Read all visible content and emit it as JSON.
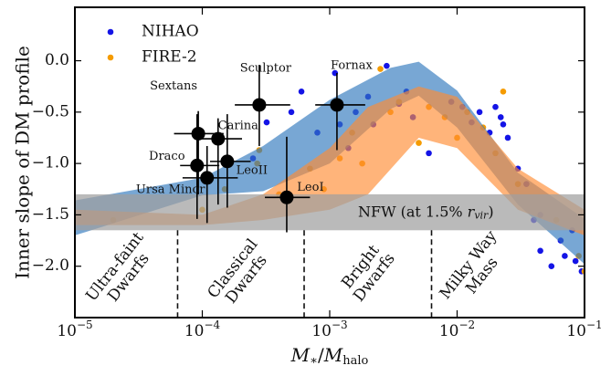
{
  "chart_data": {
    "type": "scatter",
    "x_label": {
      "parts": [
        "M",
        "∗",
        "/",
        "M",
        "halo"
      ]
    },
    "y_label": "Inner slope of DM profile",
    "xscale": "log",
    "xlim": [
      1e-05,
      0.1
    ],
    "ylim": [
      -2.5,
      0.52
    ],
    "xticks": [
      {
        "value": 1e-05,
        "label": "10",
        "sup": "−5"
      },
      {
        "value": 0.0001,
        "label": "10",
        "sup": "−4"
      },
      {
        "value": 0.001,
        "label": "10",
        "sup": "−3"
      },
      {
        "value": 0.01,
        "label": "10",
        "sup": "−2"
      },
      {
        "value": 0.1,
        "label": "10",
        "sup": "−1"
      }
    ],
    "yticks": [
      {
        "value": 0,
        "label": "0.0"
      },
      {
        "value": -0.5,
        "label": "−0.5"
      },
      {
        "value": -1,
        "label": "−1.0"
      },
      {
        "value": -1.5,
        "label": "−1.5"
      },
      {
        "value": -2,
        "label": "−2.0"
      }
    ],
    "legend": "upper left",
    "series": [
      {
        "name": "NIHAO",
        "color": "#1414e6",
        "x": [
          0.00025,
          0.00032,
          0.0005,
          0.0006,
          0.0008,
          0.0011,
          0.0012,
          0.0014,
          0.0016,
          0.002,
          0.0022,
          0.0028,
          0.0035,
          0.004,
          0.0045,
          0.006,
          0.009,
          0.011,
          0.013,
          0.015,
          0.018,
          0.02,
          0.022,
          0.023,
          0.025,
          0.03,
          0.035,
          0.04,
          0.045,
          0.045,
          0.055,
          0.065,
          0.07,
          0.08,
          0.085,
          0.095
        ],
        "y": [
          -0.95,
          -0.6,
          -0.5,
          -0.3,
          -0.7,
          -0.12,
          -0.62,
          -0.85,
          -0.5,
          -0.35,
          -0.62,
          -0.05,
          -0.42,
          -0.3,
          -0.55,
          -0.9,
          -0.4,
          -0.45,
          -0.6,
          -0.5,
          -0.7,
          -0.45,
          -0.55,
          -0.62,
          -0.75,
          -1.05,
          -1.2,
          -1.55,
          -1.85,
          -1.5,
          -2.0,
          -1.75,
          -1.9,
          -1.65,
          -1.95,
          -2.05
        ]
      },
      {
        "name": "FIRE-2",
        "color": "#f59b00",
        "x": [
          2e-05,
          0.0001,
          0.00015,
          0.00027,
          0.00028,
          0.0004,
          0.0007,
          0.0009,
          0.0012,
          0.0015,
          0.0018,
          0.0025,
          0.003,
          0.0035,
          0.005,
          0.006,
          0.008,
          0.01,
          0.012,
          0.016,
          0.02,
          0.023,
          0.03,
          0.06,
          0.09,
          0.1
        ],
        "y": [
          -1.55,
          -1.45,
          -1.25,
          -1.0,
          -0.87,
          -1.3,
          -1.05,
          -1.25,
          -0.95,
          -0.7,
          -1.0,
          -0.08,
          -0.5,
          -0.4,
          -0.8,
          -0.45,
          -0.55,
          -0.75,
          -0.5,
          -0.65,
          -0.9,
          -0.3,
          -1.2,
          -1.55,
          -1.9,
          -2.05
        ]
      }
    ],
    "bands": [
      {
        "color": "#2f78bd",
        "x": [
          1e-05,
          0.0001,
          0.0003,
          0.001,
          0.003,
          0.005,
          0.01,
          0.03,
          0.1
        ],
        "upper": [
          -1.36,
          -1.14,
          -0.83,
          -0.38,
          -0.07,
          -0.01,
          -0.29,
          -1.09,
          -1.54
        ],
        "lower": [
          -1.7,
          -1.31,
          -1.27,
          -1.0,
          -0.47,
          -0.34,
          -0.65,
          -1.4,
          -1.98
        ]
      },
      {
        "color": "#ff8c32",
        "x": [
          1e-05,
          0.0001,
          0.0003,
          0.001,
          0.002,
          0.005,
          0.01,
          0.03,
          0.1
        ],
        "upper": [
          -1.45,
          -1.5,
          -1.3,
          -0.85,
          -0.45,
          -0.25,
          -0.35,
          -1.05,
          -1.45
        ],
        "lower": [
          -1.6,
          -1.6,
          -1.55,
          -1.45,
          -1.3,
          -0.75,
          -0.85,
          -1.45,
          -1.7
        ]
      }
    ],
    "nfw_band": {
      "upper": -1.3,
      "lower": -1.65,
      "label": "NFW (at 1.5% ",
      "label_var": "r",
      "label_sub": "vir",
      "label_end": ")"
    },
    "dividers": [
      6.4e-05,
      0.00063,
      0.0063
    ],
    "regions": [
      {
        "lines": [
          "Ultra-faint",
          "Dwarfs"
        ]
      },
      {
        "lines": [
          "Classical",
          "Dwarfs"
        ]
      },
      {
        "lines": [
          "Bright",
          "Dwarfs"
        ]
      },
      {
        "lines": [
          "Milky Way",
          "Mass"
        ]
      }
    ],
    "dwarfs": [
      {
        "name": "Sextans",
        "x": 9.3e-05,
        "y": -0.71,
        "x_lo": 6e-05,
        "x_hi": 0.000147,
        "y_lo": -1.3,
        "y_hi": -0.49
      },
      {
        "name": "Carina",
        "x": 0.000133,
        "y": -0.76,
        "x_lo": 8.7e-05,
        "x_hi": 0.000205,
        "y_lo": -1.4,
        "y_hi": -0.56
      },
      {
        "name": "Draco",
        "x": 9.1e-05,
        "y": -1.02,
        "x_lo": 6.7e-05,
        "x_hi": 0.000136,
        "y_lo": -1.54,
        "y_hi": -0.52
      },
      {
        "name": "LeoII",
        "x": 0.000157,
        "y": -0.98,
        "x_lo": 0.000115,
        "x_hi": 0.00024,
        "y_lo": -1.43,
        "y_hi": -0.52
      },
      {
        "name": "Ursa Minor",
        "x": 0.000109,
        "y": -1.14,
        "x_lo": 7e-05,
        "x_hi": 0.00019,
        "y_lo": -1.58,
        "y_hi": -0.83
      },
      {
        "name": "Sculptor",
        "x": 0.00028,
        "y": -0.43,
        "x_lo": 0.00018,
        "x_hi": 0.00049,
        "y_lo": -0.83,
        "y_hi": -0.04
      },
      {
        "name": "Fornax",
        "x": 0.00114,
        "y": -0.43,
        "x_lo": 0.00077,
        "x_hi": 0.0019,
        "y_lo": -0.87,
        "y_hi": -0.12
      },
      {
        "name": "LeoI",
        "x": 0.00046,
        "y": -1.33,
        "x_lo": 0.00031,
        "x_hi": 0.0007,
        "y_lo": -1.67,
        "y_hi": -0.74
      }
    ]
  }
}
